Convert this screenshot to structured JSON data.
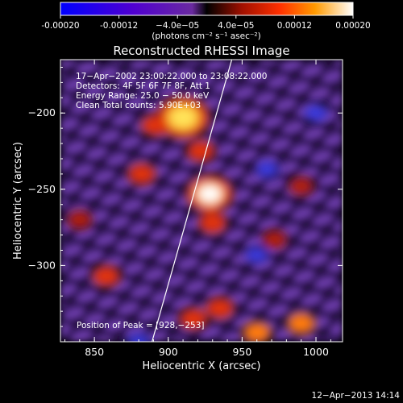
{
  "colorbar": {
    "min": -0.0002,
    "max": 0.0002,
    "tick_labels": [
      "-0.00020",
      "-0.00012",
      "−4.0e−05",
      "4.0e−05",
      "0.00012",
      "0.00020"
    ],
    "unit_label": "(photons cm⁻² s⁻¹ asec⁻²)"
  },
  "chart_data": {
    "type": "heatmap",
    "title": "Reconstructed RHESSI Image",
    "xlabel": "Heliocentric X (arcsec)",
    "ylabel": "Heliocentric Y (arcsec)",
    "xlim": [
      827,
      1018
    ],
    "ylim": [
      -350,
      -165
    ],
    "xticks": [
      850,
      900,
      950,
      1000
    ],
    "yticks": [
      -200,
      -250,
      -300
    ],
    "xtick_labels": [
      "850",
      "900",
      "950",
      "1000"
    ],
    "ytick_labels": [
      "−200",
      "−250",
      "−300"
    ],
    "info_lines": [
      "17−Apr−2002 23:00:22.000 to 23:08:22.000",
      "Detectors: 4F 5F 6F 7F 8F, Att 1",
      "Energy Range: 25.0 − 50.0 keV",
      "Clean    Total counts: 5.90E+03"
    ],
    "peak_label": "Position of Peak = [928,−253]",
    "peak": {
      "x": 928,
      "y": -253
    },
    "limb_line": [
      {
        "x": 889,
        "y": -350
      },
      {
        "x": 943,
        "y": -165
      }
    ],
    "hot_sources": [
      {
        "x": 928,
        "y": -253,
        "value": 0.0002
      },
      {
        "x": 910,
        "y": -203,
        "value": 0.00017
      },
      {
        "x": 922,
        "y": -225,
        "value": 9e-05
      },
      {
        "x": 891,
        "y": -208,
        "value": 9e-05
      },
      {
        "x": 882,
        "y": -240,
        "value": 8e-05
      },
      {
        "x": 930,
        "y": -272,
        "value": 8e-05
      },
      {
        "x": 935,
        "y": -328,
        "value": 9e-05
      },
      {
        "x": 917,
        "y": -335,
        "value": 8e-05
      },
      {
        "x": 960,
        "y": -344,
        "value": 0.00011
      },
      {
        "x": 990,
        "y": -338,
        "value": 0.00011
      },
      {
        "x": 858,
        "y": -307,
        "value": 7e-05
      },
      {
        "x": 840,
        "y": -270,
        "value": 6e-05
      },
      {
        "x": 990,
        "y": -248,
        "value": 6e-05
      },
      {
        "x": 972,
        "y": -283,
        "value": 6e-05
      }
    ],
    "cold_sources": [
      {
        "x": 1000,
        "y": -200,
        "value": -0.00013
      },
      {
        "x": 967,
        "y": -237,
        "value": -0.0001
      },
      {
        "x": 960,
        "y": -293,
        "value": -0.0001
      },
      {
        "x": 880,
        "y": -350,
        "value": -9e-05
      }
    ]
  },
  "footer": {
    "timestamp": "12−Apr−2013 14:14"
  }
}
